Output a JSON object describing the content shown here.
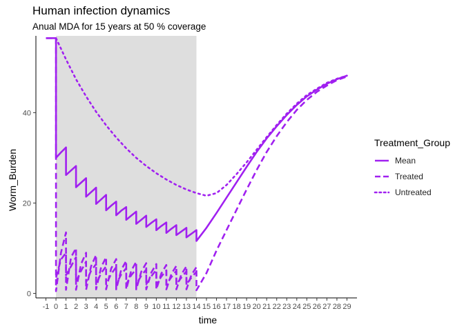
{
  "chart_data": {
    "type": "line",
    "title": "Human infection dynamics",
    "subtitle": "Anual MDA for 15 years at 50 % coverage",
    "xlabel": "time",
    "ylabel": "Worm_Burden",
    "xlim": [
      -2,
      30
    ],
    "ylim": [
      -1,
      57
    ],
    "x_ticks": [
      -1,
      0,
      1,
      2,
      3,
      4,
      5,
      6,
      7,
      8,
      9,
      10,
      11,
      12,
      13,
      14,
      15,
      16,
      17,
      18,
      19,
      20,
      21,
      22,
      23,
      24,
      25,
      26,
      27,
      28,
      29
    ],
    "y_ticks": [
      0,
      20,
      40
    ],
    "shaded_region": {
      "x_start": 0,
      "x_end": 14,
      "color": "#dedede"
    },
    "grid": false,
    "legend": {
      "title": "Treatment_Group",
      "position": "right",
      "entries": [
        "Mean",
        "Treated",
        "Untreated"
      ]
    },
    "line_color": "#a020f0",
    "series": [
      {
        "name": "Mean",
        "dash": "solid",
        "points": [
          [
            -1,
            56.5
          ],
          [
            0,
            56.5
          ],
          [
            0,
            30
          ],
          [
            0.5,
            31.2
          ],
          [
            1,
            32.3
          ],
          [
            1,
            26.2
          ],
          [
            1.5,
            27.2
          ],
          [
            2,
            28.2
          ],
          [
            2,
            23.5
          ],
          [
            2.5,
            24.5
          ],
          [
            3,
            25.5
          ],
          [
            3,
            21.4
          ],
          [
            3.5,
            22.4
          ],
          [
            4,
            23.4
          ],
          [
            4,
            19.8
          ],
          [
            4.5,
            20.8
          ],
          [
            5,
            21.8
          ],
          [
            5,
            18.4
          ],
          [
            5.5,
            19.4
          ],
          [
            6,
            20.3
          ],
          [
            6,
            17.3
          ],
          [
            6.5,
            18.3
          ],
          [
            7,
            19.1
          ],
          [
            7,
            16.3
          ],
          [
            7.5,
            17.2
          ],
          [
            8,
            18.1
          ],
          [
            8,
            15.4
          ],
          [
            8.5,
            16.3
          ],
          [
            9,
            17.2
          ],
          [
            9,
            14.7
          ],
          [
            9.5,
            15.6
          ],
          [
            10,
            16.4
          ],
          [
            10,
            14
          ],
          [
            10.5,
            14.9
          ],
          [
            11,
            15.7
          ],
          [
            11,
            13.4
          ],
          [
            11.5,
            14.3
          ],
          [
            12,
            15.1
          ],
          [
            12,
            12.9
          ],
          [
            12.5,
            13.7
          ],
          [
            13,
            14.5
          ],
          [
            13,
            12.4
          ],
          [
            13.5,
            13.2
          ],
          [
            14,
            14
          ],
          [
            14,
            11.6
          ],
          [
            15,
            14.5
          ],
          [
            16,
            17.8
          ],
          [
            17,
            21.2
          ],
          [
            18,
            24.6
          ],
          [
            19,
            28
          ],
          [
            20,
            31.3
          ],
          [
            21,
            34.3
          ],
          [
            22,
            37
          ],
          [
            23,
            39.5
          ],
          [
            24,
            41.7
          ],
          [
            25,
            43.6
          ],
          [
            26,
            45.1
          ],
          [
            27,
            46.4
          ],
          [
            28,
            47.4
          ],
          [
            29,
            48.2
          ]
        ]
      },
      {
        "name": "Treated",
        "dash": "dashed",
        "segments": [
          [
            [
              -1,
              56.5
            ],
            [
              0,
              56.5
            ],
            [
              0,
              0.5
            ],
            [
              0.5,
              9
            ],
            [
              1,
              13.5
            ],
            [
              1,
              0.8
            ],
            [
              1.5,
              8
            ],
            [
              2,
              10
            ],
            [
              2,
              0.8
            ],
            [
              2.5,
              6.5
            ],
            [
              3,
              9
            ],
            [
              3,
              0.8
            ],
            [
              3.5,
              6
            ],
            [
              4,
              8.5
            ],
            [
              4,
              0.9
            ],
            [
              4.5,
              5.8
            ],
            [
              5,
              8
            ],
            [
              5,
              0.9
            ],
            [
              5.5,
              5.5
            ],
            [
              6,
              7.6
            ],
            [
              6,
              0.9
            ],
            [
              6.5,
              5.2
            ],
            [
              7,
              7.2
            ],
            [
              7,
              0.9
            ],
            [
              7.5,
              5
            ],
            [
              8,
              7
            ],
            [
              8,
              0.9
            ],
            [
              8.5,
              4.8
            ],
            [
              9,
              6.7
            ],
            [
              9,
              0.9
            ],
            [
              9.5,
              4.6
            ],
            [
              10,
              6.5
            ],
            [
              10,
              0.9
            ],
            [
              10.5,
              4.4
            ],
            [
              11,
              6.3
            ],
            [
              11,
              0.9
            ],
            [
              11.5,
              4.3
            ],
            [
              12,
              6.1
            ],
            [
              12,
              0.9
            ],
            [
              12.5,
              4.2
            ],
            [
              13,
              6
            ],
            [
              13,
              0.9
            ],
            [
              13.5,
              4.1
            ],
            [
              14,
              5.8
            ],
            [
              14,
              0.7
            ],
            [
              15,
              4.5
            ],
            [
              16,
              9.5
            ],
            [
              17,
              14
            ],
            [
              18,
              18.5
            ],
            [
              19,
              23
            ],
            [
              20,
              27.3
            ],
            [
              21,
              31.3
            ],
            [
              22,
              34.8
            ],
            [
              23,
              37.9
            ],
            [
              24,
              40.6
            ],
            [
              25,
              42.8
            ],
            [
              26,
              44.6
            ],
            [
              27,
              46
            ],
            [
              28,
              47.2
            ],
            [
              29,
              48
            ]
          ],
          [
            [
              0,
              3.5
            ],
            [
              0.5,
              7.5
            ],
            [
              1,
              9
            ],
            [
              1,
              4
            ],
            [
              1.5,
              6
            ],
            [
              2,
              8
            ],
            [
              2,
              2.5
            ],
            [
              2.5,
              5
            ],
            [
              3,
              7
            ],
            [
              3,
              2.5
            ],
            [
              3.5,
              5
            ],
            [
              4,
              6.5
            ],
            [
              4,
              2
            ],
            [
              4.5,
              4.5
            ],
            [
              5,
              6
            ],
            [
              5,
              2
            ],
            [
              5.5,
              4.3
            ],
            [
              6,
              5.8
            ],
            [
              6,
              2
            ],
            [
              6.5,
              4.2
            ],
            [
              7,
              5.6
            ],
            [
              7,
              2
            ],
            [
              7.5,
              4
            ],
            [
              8,
              5.4
            ],
            [
              8,
              2
            ],
            [
              8.5,
              3.9
            ],
            [
              9,
              5.3
            ],
            [
              9,
              2
            ],
            [
              9.5,
              3.8
            ],
            [
              10,
              5.2
            ],
            [
              10,
              2
            ],
            [
              10.5,
              3.7
            ],
            [
              11,
              5.1
            ],
            [
              11,
              2
            ],
            [
              11.5,
              3.6
            ],
            [
              12,
              5
            ],
            [
              12,
              2
            ],
            [
              12.5,
              3.5
            ],
            [
              13,
              4.9
            ],
            [
              13,
              2
            ],
            [
              13.5,
              3.5
            ],
            [
              14,
              4.8
            ]
          ]
        ]
      },
      {
        "name": "Untreated",
        "dash": "dotted",
        "points": [
          [
            0,
            56.5
          ],
          [
            1,
            51.8
          ],
          [
            2,
            47.4
          ],
          [
            3,
            43.6
          ],
          [
            4,
            40.2
          ],
          [
            5,
            37.2
          ],
          [
            6,
            34.5
          ],
          [
            7,
            32.1
          ],
          [
            8,
            30
          ],
          [
            9,
            28.2
          ],
          [
            10,
            26.6
          ],
          [
            11,
            25.2
          ],
          [
            12,
            24
          ],
          [
            13,
            23
          ],
          [
            14,
            22.2
          ],
          [
            15,
            21.6
          ],
          [
            16,
            22.2
          ],
          [
            17,
            24
          ],
          [
            18,
            26.4
          ],
          [
            19,
            29
          ],
          [
            20,
            31.8
          ],
          [
            21,
            34.6
          ],
          [
            22,
            37.3
          ],
          [
            23,
            39.8
          ],
          [
            24,
            42
          ],
          [
            25,
            43.9
          ],
          [
            26,
            45.3
          ],
          [
            27,
            46.6
          ],
          [
            28,
            47.5
          ],
          [
            29,
            48.2
          ]
        ]
      }
    ]
  }
}
